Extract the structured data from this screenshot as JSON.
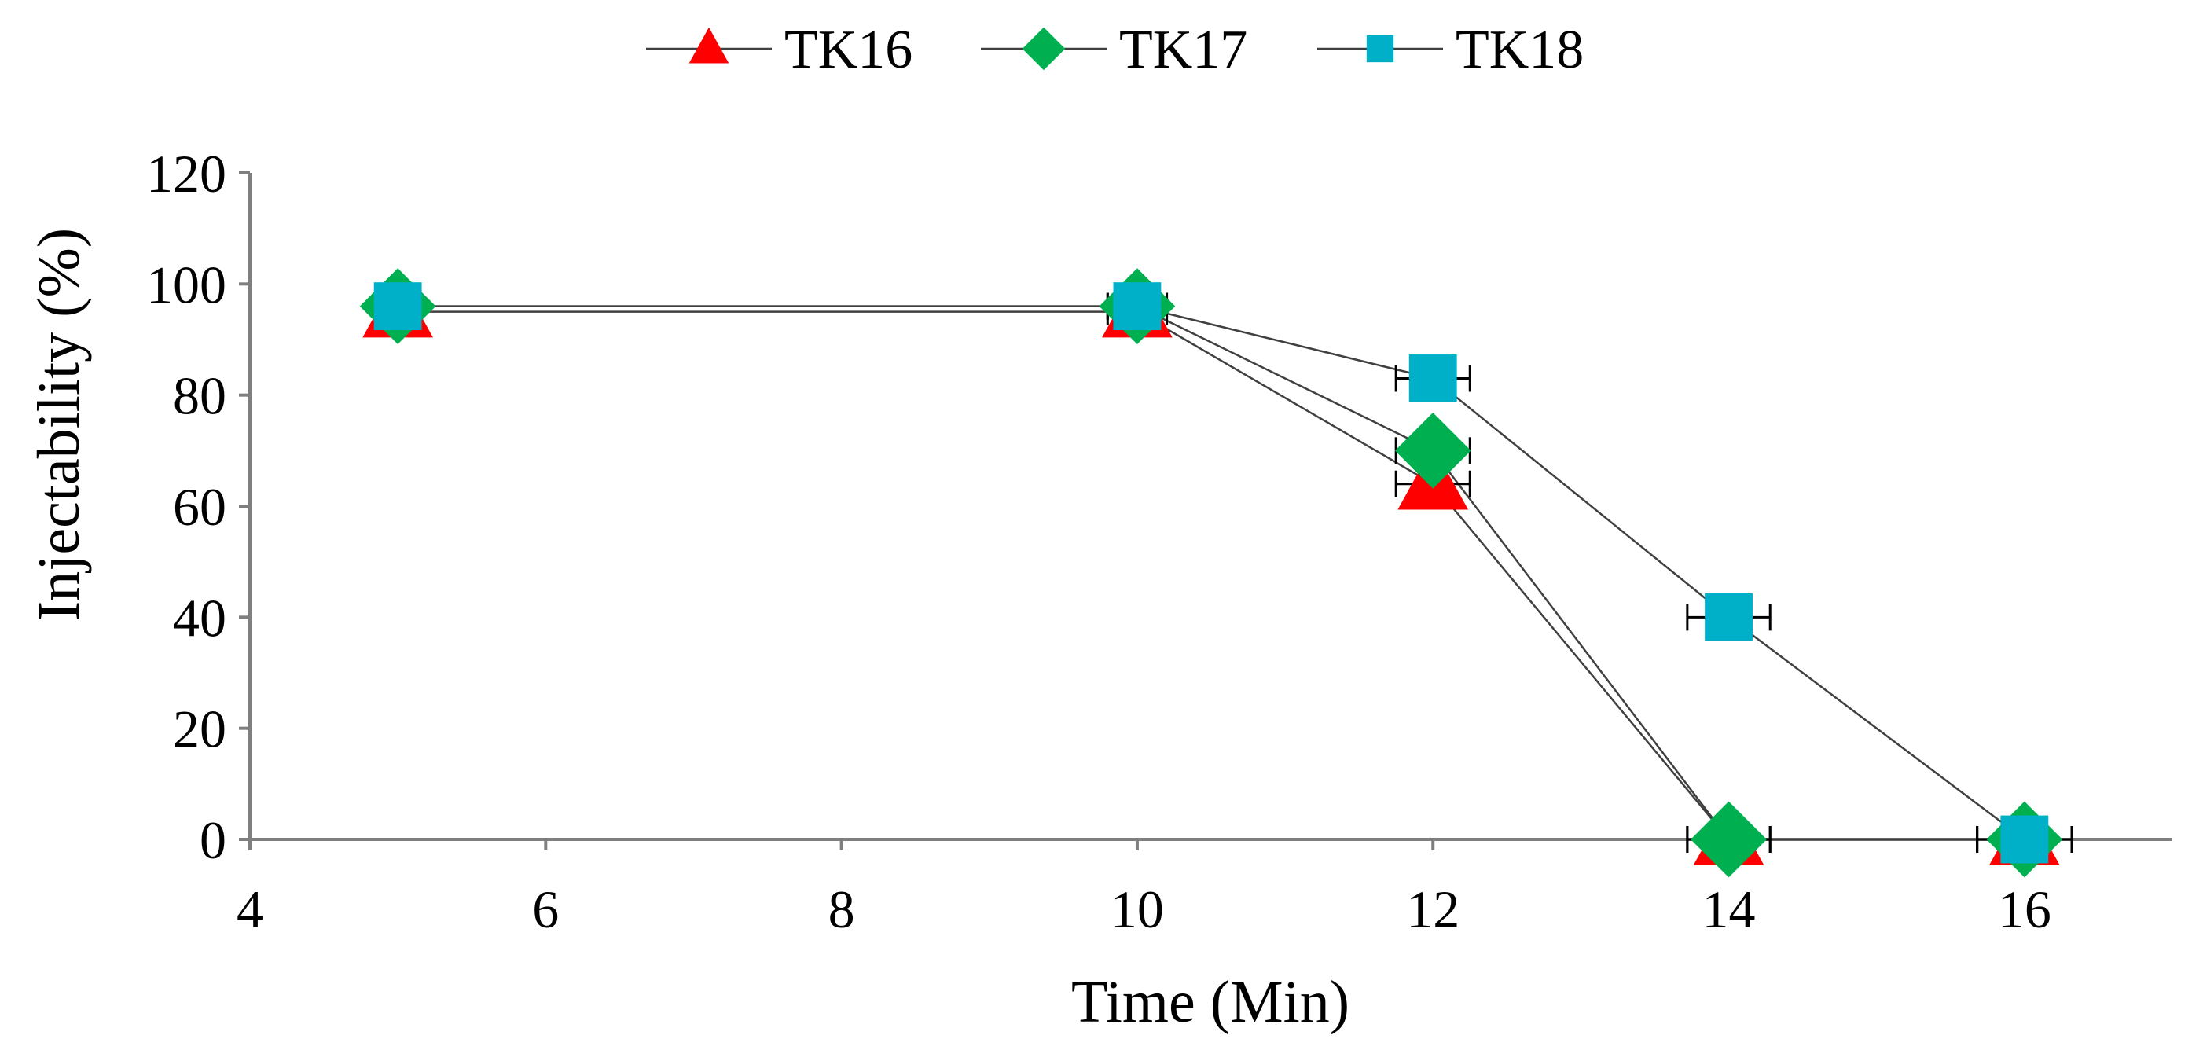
{
  "chart_data": {
    "type": "line",
    "title": "",
    "xlabel": "Time (Min)",
    "ylabel": "Injectability (%)",
    "xlim": [
      4,
      17
    ],
    "ylim": [
      0,
      120
    ],
    "x_ticks": [
      4,
      6,
      8,
      10,
      12,
      14,
      16
    ],
    "y_ticks": [
      0,
      20,
      40,
      60,
      80,
      100,
      120
    ],
    "grid": false,
    "legend_position": "top-center",
    "series": [
      {
        "name": "TK16",
        "marker": "triangle",
        "color": "#ff0000",
        "x": [
          5,
          10,
          12,
          14,
          16
        ],
        "y": [
          95,
          95,
          64,
          0,
          0
        ],
        "xerr": [
          0,
          0.2,
          0.25,
          0.28,
          0.32
        ]
      },
      {
        "name": "TK17",
        "marker": "diamond",
        "color": "#00b050",
        "x": [
          5,
          10,
          12,
          14,
          16
        ],
        "y": [
          96,
          96,
          70,
          0,
          0
        ],
        "xerr": [
          0,
          0.2,
          0.25,
          0.28,
          0.32
        ]
      },
      {
        "name": "TK18",
        "marker": "square",
        "color": "#00b0c8",
        "x": [
          5,
          10,
          12,
          14,
          16
        ],
        "y": [
          96,
          96,
          83,
          40,
          0
        ],
        "xerr": [
          0,
          0.2,
          0.25,
          0.28,
          0.32
        ]
      }
    ],
    "line_color": "#404040",
    "axis_color": "#7f7f7f"
  }
}
